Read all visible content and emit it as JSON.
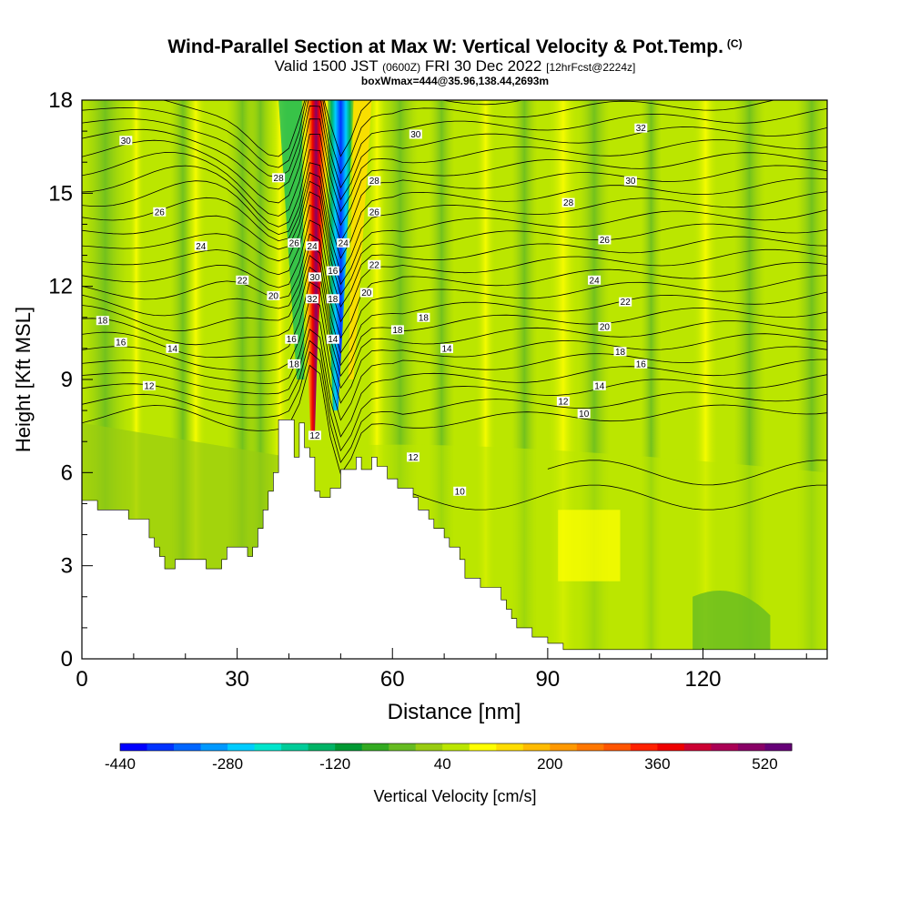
{
  "header": {
    "title": "Wind-Parallel Section at Max W: Vertical Velocity & Pot.Temp.",
    "copyright": "(C)",
    "valid_prefix": "Valid 1500 JST",
    "valid_zulu": "(0600Z)",
    "valid_date": "FRI 30 Dec 2022",
    "forecast": "[12hrFcst@2224z]",
    "box_info": "boxWmax=444@35.96,138.44,2693m"
  },
  "chart_data": {
    "type": "heatmap",
    "title": "Wind-Parallel Section at Max W: Vertical Velocity & Pot.Temp.",
    "xlabel": "Distance [nm]",
    "ylabel": "Height [Kft MSL]",
    "xlim": [
      0,
      144
    ],
    "ylim": [
      0,
      18
    ],
    "xticks": [
      0,
      30,
      60,
      90,
      120
    ],
    "yticks": [
      0,
      3,
      6,
      9,
      12,
      15,
      18
    ],
    "colorbar": {
      "label": "Vertical Velocity [cm/s]",
      "tick_labels": [
        -440,
        -280,
        -120,
        40,
        200,
        360,
        520
      ],
      "levels": [
        -440,
        -400,
        -360,
        -320,
        -280,
        -240,
        -200,
        -160,
        -120,
        -80,
        -40,
        0,
        40,
        80,
        120,
        160,
        200,
        240,
        280,
        320,
        360,
        400,
        440,
        480,
        520,
        560
      ],
      "colors": [
        "#0000ff",
        "#0033ff",
        "#0066ff",
        "#0099ff",
        "#00ccff",
        "#00e5cc",
        "#00cc99",
        "#00b366",
        "#009933",
        "#33aa22",
        "#66bb22",
        "#99cc11",
        "#bbe600",
        "#ffff00",
        "#ffdd00",
        "#ffbb00",
        "#ff9900",
        "#ff7700",
        "#ff5500",
        "#ff2200",
        "#ee0000",
        "#cc0033",
        "#aa0055",
        "#880066",
        "#660077"
      ]
    },
    "terrain_kft": [
      [
        0,
        5.1
      ],
      [
        3,
        5.1
      ],
      [
        3,
        4.8
      ],
      [
        9,
        4.8
      ],
      [
        9,
        4.5
      ],
      [
        13,
        4.5
      ],
      [
        13,
        3.9
      ],
      [
        14,
        3.9
      ],
      [
        14,
        3.6
      ],
      [
        15,
        3.6
      ],
      [
        15,
        3.3
      ],
      [
        16,
        3.3
      ],
      [
        16,
        2.9
      ],
      [
        18,
        2.9
      ],
      [
        18,
        3.2
      ],
      [
        24,
        3.2
      ],
      [
        24,
        2.9
      ],
      [
        27,
        2.9
      ],
      [
        27,
        3.2
      ],
      [
        28,
        3.2
      ],
      [
        28,
        3.6
      ],
      [
        32,
        3.6
      ],
      [
        32,
        3.3
      ],
      [
        33,
        3.3
      ],
      [
        33,
        3.6
      ],
      [
        34,
        3.6
      ],
      [
        34,
        4.2
      ],
      [
        35,
        4.2
      ],
      [
        35,
        4.8
      ],
      [
        36,
        4.8
      ],
      [
        36,
        5.4
      ],
      [
        37,
        5.4
      ],
      [
        37,
        6.0
      ],
      [
        38,
        6.0
      ],
      [
        38,
        7.7
      ],
      [
        41,
        7.7
      ],
      [
        41,
        6.5
      ],
      [
        42,
        6.5
      ],
      [
        42,
        7.6
      ],
      [
        43,
        7.6
      ],
      [
        43,
        6.8
      ],
      [
        44,
        6.8
      ],
      [
        44,
        6.5
      ],
      [
        45,
        6.5
      ],
      [
        45,
        5.4
      ],
      [
        46,
        5.4
      ],
      [
        46,
        5.2
      ],
      [
        48,
        5.2
      ],
      [
        48,
        5.5
      ],
      [
        50,
        5.5
      ],
      [
        50,
        6.1
      ],
      [
        53,
        6.1
      ],
      [
        53,
        6.5
      ],
      [
        54,
        6.5
      ],
      [
        54,
        6.1
      ],
      [
        56,
        6.1
      ],
      [
        56,
        6.5
      ],
      [
        57,
        6.5
      ],
      [
        57,
        6.2
      ],
      [
        59,
        6.2
      ],
      [
        59,
        5.8
      ],
      [
        61,
        5.8
      ],
      [
        61,
        5.5
      ],
      [
        64,
        5.5
      ],
      [
        64,
        5.2
      ],
      [
        65,
        5.2
      ],
      [
        65,
        4.8
      ],
      [
        67,
        4.8
      ],
      [
        67,
        4.5
      ],
      [
        68,
        4.5
      ],
      [
        68,
        4.2
      ],
      [
        70,
        4.2
      ],
      [
        70,
        3.9
      ],
      [
        71,
        3.9
      ],
      [
        71,
        3.6
      ],
      [
        73,
        3.6
      ],
      [
        73,
        3.2
      ],
      [
        74,
        3.2
      ],
      [
        74,
        2.6
      ],
      [
        77,
        2.6
      ],
      [
        77,
        2.3
      ],
      [
        81,
        2.3
      ],
      [
        81,
        1.9
      ],
      [
        82,
        1.9
      ],
      [
        82,
        1.6
      ],
      [
        83,
        1.6
      ],
      [
        83,
        1.3
      ],
      [
        84,
        1.3
      ],
      [
        84,
        1.0
      ],
      [
        87,
        1.0
      ],
      [
        87,
        0.7
      ],
      [
        90,
        0.7
      ],
      [
        90,
        0.5
      ],
      [
        93,
        0.5
      ],
      [
        93,
        0.3
      ],
      [
        144,
        0.3
      ],
      [
        144,
        0
      ]
    ],
    "isentropes": {
      "levels": [
        10,
        12,
        14,
        16,
        18,
        20,
        22,
        24,
        26,
        28,
        30,
        32
      ],
      "labels": [
        {
          "text": "30",
          "x": 8.5,
          "y": 16.7
        },
        {
          "text": "28",
          "x": 38,
          "y": 15.5
        },
        {
          "text": "26",
          "x": 15,
          "y": 14.4
        },
        {
          "text": "24",
          "x": 23,
          "y": 13.3
        },
        {
          "text": "22",
          "x": 31,
          "y": 12.2
        },
        {
          "text": "20",
          "x": 37,
          "y": 11.7
        },
        {
          "text": "18",
          "x": 4,
          "y": 10.9
        },
        {
          "text": "16",
          "x": 7.5,
          "y": 10.2
        },
        {
          "text": "14",
          "x": 17.5,
          "y": 10.0
        },
        {
          "text": "12",
          "x": 13,
          "y": 8.8
        },
        {
          "text": "26",
          "x": 41,
          "y": 13.4
        },
        {
          "text": "24",
          "x": 44.5,
          "y": 13.3
        },
        {
          "text": "30",
          "x": 45,
          "y": 12.3
        },
        {
          "text": "32",
          "x": 44.5,
          "y": 11.6
        },
        {
          "text": "24",
          "x": 50.5,
          "y": 13.4
        },
        {
          "text": "16",
          "x": 48.5,
          "y": 12.5
        },
        {
          "text": "18",
          "x": 48.5,
          "y": 11.6
        },
        {
          "text": "16",
          "x": 40.5,
          "y": 10.3
        },
        {
          "text": "18",
          "x": 41,
          "y": 9.5
        },
        {
          "text": "14",
          "x": 48.5,
          "y": 10.3
        },
        {
          "text": "12",
          "x": 45,
          "y": 7.2
        },
        {
          "text": "30",
          "x": 64.5,
          "y": 16.9
        },
        {
          "text": "28",
          "x": 56.5,
          "y": 15.4
        },
        {
          "text": "26",
          "x": 56.5,
          "y": 14.4
        },
        {
          "text": "22",
          "x": 56.5,
          "y": 12.7
        },
        {
          "text": "20",
          "x": 55,
          "y": 11.8
        },
        {
          "text": "18",
          "x": 66,
          "y": 11.0
        },
        {
          "text": "18",
          "x": 61,
          "y": 10.6
        },
        {
          "text": "14",
          "x": 70.5,
          "y": 10.0
        },
        {
          "text": "12",
          "x": 64,
          "y": 6.5
        },
        {
          "text": "10",
          "x": 73,
          "y": 5.4
        },
        {
          "text": "32",
          "x": 108,
          "y": 17.1
        },
        {
          "text": "30",
          "x": 106,
          "y": 15.4
        },
        {
          "text": "28",
          "x": 94,
          "y": 14.7
        },
        {
          "text": "26",
          "x": 101,
          "y": 13.5
        },
        {
          "text": "24",
          "x": 99,
          "y": 12.2
        },
        {
          "text": "22",
          "x": 105,
          "y": 11.5
        },
        {
          "text": "20",
          "x": 101,
          "y": 10.7
        },
        {
          "text": "18",
          "x": 104,
          "y": 9.9
        },
        {
          "text": "16",
          "x": 108,
          "y": 9.5
        },
        {
          "text": "14",
          "x": 100,
          "y": 8.8
        },
        {
          "text": "12",
          "x": 93,
          "y": 8.3
        },
        {
          "text": "10",
          "x": 97,
          "y": 7.9
        }
      ]
    }
  }
}
